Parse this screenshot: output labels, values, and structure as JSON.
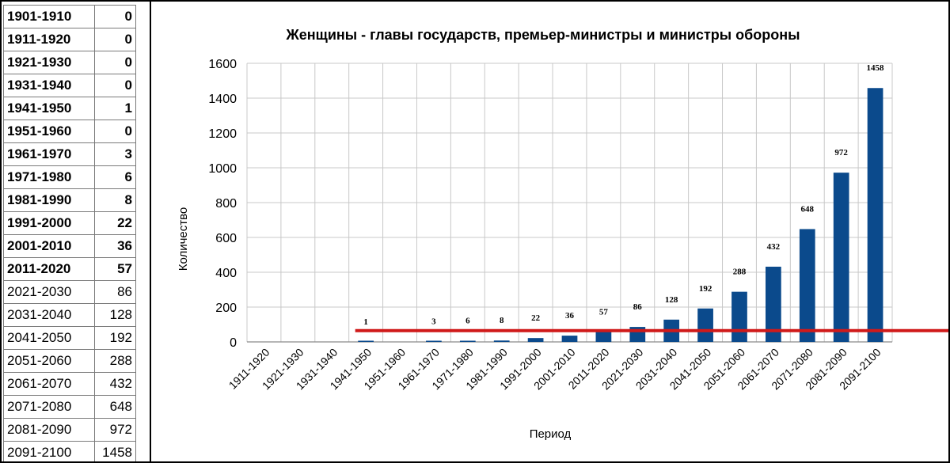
{
  "spreadsheet": {
    "rows": [
      {
        "period": "1901-1910",
        "value": "0",
        "bold": true
      },
      {
        "period": "1911-1920",
        "value": "0",
        "bold": true
      },
      {
        "period": "1921-1930",
        "value": "0",
        "bold": true
      },
      {
        "period": "1931-1940",
        "value": "0",
        "bold": true
      },
      {
        "period": "1941-1950",
        "value": "1",
        "bold": true
      },
      {
        "period": "1951-1960",
        "value": "0",
        "bold": true
      },
      {
        "period": "1961-1970",
        "value": "3",
        "bold": true
      },
      {
        "period": "1971-1980",
        "value": "6",
        "bold": true
      },
      {
        "period": "1981-1990",
        "value": "8",
        "bold": true
      },
      {
        "period": "1991-2000",
        "value": "22",
        "bold": true
      },
      {
        "period": "2001-2010",
        "value": "36",
        "bold": true
      },
      {
        "period": "2011-2020",
        "value": "57",
        "bold": true
      },
      {
        "period": "2021-2030",
        "value": "86",
        "bold": false
      },
      {
        "period": "2031-2040",
        "value": "128",
        "bold": false
      },
      {
        "period": "2041-2050",
        "value": "192",
        "bold": false
      },
      {
        "period": "2051-2060",
        "value": "288",
        "bold": false
      },
      {
        "period": "2061-2070",
        "value": "432",
        "bold": false
      },
      {
        "period": "2071-2080",
        "value": "648",
        "bold": false
      },
      {
        "period": "2081-2090",
        "value": "972",
        "bold": false
      },
      {
        "period": "2091-2100",
        "value": "1458",
        "bold": false
      }
    ]
  },
  "chart_data": {
    "type": "bar",
    "title": "Женщины -  главы государств,  премьер-министры и министры обороны",
    "xlabel": "Период",
    "ylabel": "Количество",
    "ylim": [
      0,
      1600
    ],
    "yticks": [
      0,
      200,
      400,
      600,
      800,
      1000,
      1200,
      1400,
      1600
    ],
    "grid": true,
    "categories": [
      "1911-1920",
      "1921-1930",
      "1931-1940",
      "1941-1950",
      "1951-1960",
      "1961-1970",
      "1971-1980",
      "1981-1990",
      "1991-2000",
      "2001-2010",
      "2011-2020",
      "2021-2030",
      "2031-2040",
      "2041-2050",
      "2051-2060",
      "2061-2070",
      "2071-2080",
      "2081-2090",
      "2091-2100"
    ],
    "values": [
      0,
      0,
      0,
      1,
      0,
      3,
      6,
      8,
      22,
      36,
      57,
      86,
      128,
      192,
      288,
      432,
      648,
      972,
      1458
    ],
    "data_labels": [
      "",
      "",
      "",
      "1",
      "",
      "3",
      "6",
      "8",
      "22",
      "36",
      "57",
      "86",
      "128",
      "192",
      "288",
      "432",
      "648",
      "972",
      "1458"
    ],
    "bar_color": "#0b4a8c",
    "reference_line": {
      "value": 65,
      "color": "#d01a1a",
      "from_category": "1941-1950"
    }
  }
}
